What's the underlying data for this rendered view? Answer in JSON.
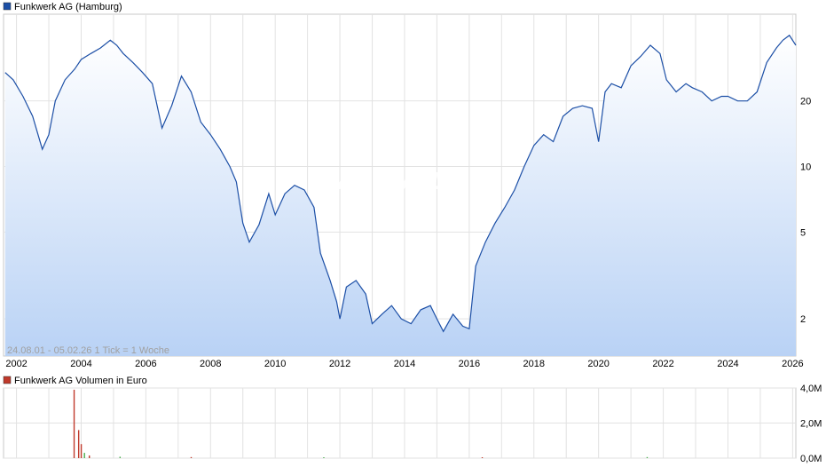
{
  "watermark": "ARIVA.DE",
  "period_label": "24.08.01 - 05.02.26   1 Tick = 1 Woche",
  "colors": {
    "price_line": "#1c4fa6",
    "price_fill_top": "#ffffff",
    "price_fill_bottom": "#b9d2f5",
    "volume_bar": "#c0392b",
    "volume_bar_small": "#4caf50",
    "grid": "#d9d9d9",
    "legend_price": "#1c4fa6",
    "legend_volume": "#c0392b"
  },
  "chart_data": [
    {
      "type": "line",
      "title": "Funkwerk AG (Hamburg)",
      "scale": "log",
      "x_tick_labels": [
        "2002",
        "2004",
        "2006",
        "2008",
        "2010",
        "2012",
        "2014",
        "2016",
        "2018",
        "2020",
        "2022",
        "2024",
        "2026"
      ],
      "y_tick_labels": [
        "2",
        "5",
        "10",
        "20"
      ],
      "y_ticks": [
        2,
        5,
        10,
        20
      ],
      "xlim": [
        2001.6,
        2026.1
      ],
      "ylim": [
        1.35,
        50
      ],
      "grid": true,
      "series": [
        {
          "name": "Funkwerk AG (Hamburg)",
          "x": [
            2001.65,
            2001.9,
            2002.2,
            2002.5,
            2002.8,
            2003.0,
            2003.2,
            2003.5,
            2003.8,
            2004.0,
            2004.3,
            2004.6,
            2004.9,
            2005.1,
            2005.3,
            2005.6,
            2005.9,
            2006.2,
            2006.5,
            2006.8,
            2007.1,
            2007.4,
            2007.7,
            2008.0,
            2008.3,
            2008.6,
            2008.8,
            2009.0,
            2009.2,
            2009.5,
            2009.8,
            2010.0,
            2010.3,
            2010.6,
            2010.9,
            2011.2,
            2011.4,
            2011.7,
            2011.9,
            2012.0,
            2012.2,
            2012.5,
            2012.8,
            2013.0,
            2013.3,
            2013.6,
            2013.9,
            2014.2,
            2014.5,
            2014.8,
            2015.0,
            2015.2,
            2015.5,
            2015.8,
            2016.0,
            2016.2,
            2016.5,
            2016.8,
            2017.1,
            2017.4,
            2017.7,
            2018.0,
            2018.3,
            2018.6,
            2018.9,
            2019.2,
            2019.5,
            2019.8,
            2020.0,
            2020.2,
            2020.4,
            2020.7,
            2021.0,
            2021.3,
            2021.6,
            2021.9,
            2022.1,
            2022.4,
            2022.7,
            2022.9,
            2023.2,
            2023.5,
            2023.8,
            2024.0,
            2024.3,
            2024.6,
            2024.9,
            2025.2,
            2025.5,
            2025.7,
            2025.9,
            2026.1
          ],
          "values": [
            27,
            25,
            21,
            17,
            12,
            14,
            20,
            25,
            28,
            31,
            33,
            35,
            38,
            36,
            33,
            30,
            27,
            24,
            15,
            19,
            26,
            22,
            16,
            14,
            12,
            10,
            8.5,
            5.5,
            4.5,
            5.4,
            7.5,
            6.0,
            7.5,
            8.2,
            7.8,
            6.5,
            4.0,
            3.0,
            2.4,
            2.0,
            2.8,
            3.0,
            2.6,
            1.9,
            2.1,
            2.3,
            2.0,
            1.9,
            2.2,
            2.3,
            2.0,
            1.75,
            2.1,
            1.85,
            1.8,
            3.5,
            4.5,
            5.5,
            6.5,
            7.8,
            10,
            12.5,
            14,
            13,
            17,
            18.5,
            19,
            18.5,
            13,
            22,
            24,
            23,
            29,
            32,
            36,
            33,
            25,
            22,
            24,
            23,
            22,
            20,
            21,
            21,
            20,
            20,
            22,
            30,
            35,
            38,
            40,
            36
          ]
        }
      ]
    },
    {
      "type": "bar",
      "title": "Funkwerk AG Volumen in Euro",
      "y_tick_labels": [
        "0,0M",
        "2,0M",
        "4,0M"
      ],
      "ylim": [
        0,
        4
      ],
      "grid": true,
      "series": [
        {
          "name": "Funkwerk AG Volumen in Euro",
          "unit": "M",
          "x": [
            2003.78,
            2003.92,
            2004.0,
            2004.1,
            2004.25,
            2005.2,
            2007.4,
            2011.5,
            2016.4,
            2021.5
          ],
          "values": [
            3.9,
            1.6,
            0.8,
            0.3,
            0.15,
            0.08,
            0.06,
            0.05,
            0.05,
            0.06
          ]
        }
      ]
    }
  ]
}
